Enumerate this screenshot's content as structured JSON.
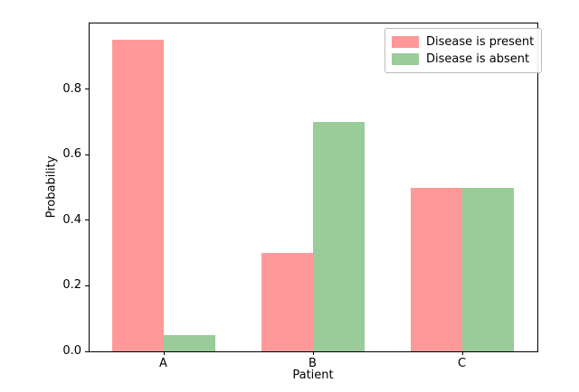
{
  "chart_data": {
    "type": "bar",
    "title": "",
    "categories": [
      "A",
      "B",
      "C"
    ],
    "series": [
      {
        "name": "Disease is present",
        "color": "#ff9999",
        "values": [
          0.95,
          0.3,
          0.5
        ]
      },
      {
        "name": "Disease is absent",
        "color": "#99cc99",
        "values": [
          0.05,
          0.7,
          0.5
        ]
      }
    ],
    "xlabel": "Patient",
    "ylabel": "Probability",
    "ylim": [
      0.0,
      1.0
    ],
    "yticks": [
      0.0,
      0.2,
      0.4,
      0.6,
      0.8
    ],
    "ytick_format_decimals": 1,
    "grid": false,
    "legend_position": "upper right",
    "colors": {
      "spine": "#000000",
      "tick": "#000000",
      "text": "#000000",
      "background": "#ffffff",
      "legend_border": "#bbbbbb"
    }
  }
}
